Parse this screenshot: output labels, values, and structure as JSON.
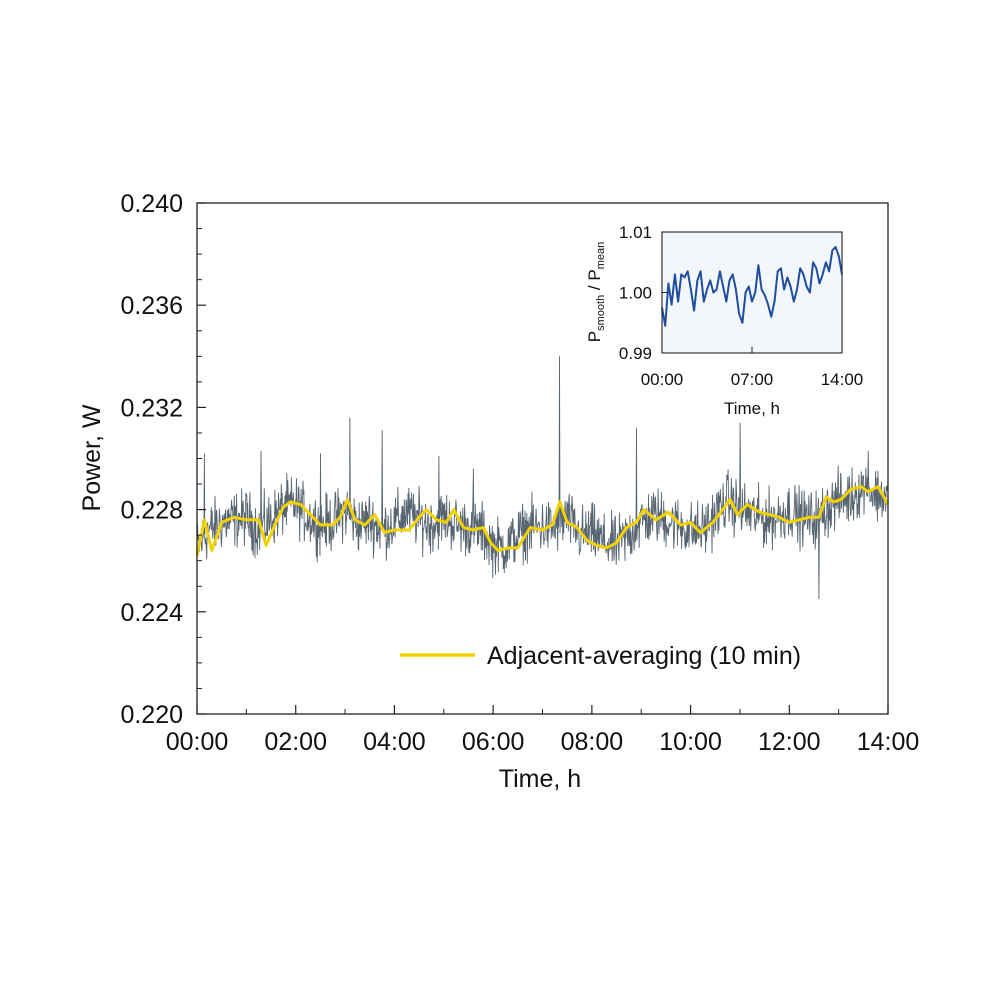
{
  "chart_data": [
    {
      "type": "line",
      "title": "",
      "xlabel": "Time, h",
      "ylabel": "Power, W",
      "xlim": [
        0,
        14
      ],
      "ylim": [
        0.22,
        0.24
      ],
      "x_ticks": [
        0,
        2,
        4,
        6,
        8,
        10,
        12,
        14
      ],
      "x_tick_labels": [
        "00:00",
        "02:00",
        "04:00",
        "06:00",
        "08:00",
        "10:00",
        "12:00",
        "14:00"
      ],
      "y_ticks": [
        0.22,
        0.224,
        0.228,
        0.232,
        0.236,
        0.24
      ],
      "y_tick_labels": [
        "0.220",
        "0.224",
        "0.228",
        "0.232",
        "0.236",
        "0.240"
      ],
      "grid": false,
      "legend": {
        "placement": "bottom-right",
        "entries": [
          "Adjacent-averaging (10 min)"
        ]
      },
      "colors": {
        "raw": "#3a4a58",
        "smooth": "#f2d100"
      },
      "series": [
        {
          "role": "raw",
          "x": [
            0,
            0.25,
            0.5,
            0.75,
            1,
            1.25,
            1.5,
            1.75,
            2,
            2.25,
            2.5,
            2.75,
            3,
            3.25,
            3.5,
            3.75,
            4,
            4.25,
            4.5,
            4.75,
            5,
            5.25,
            5.5,
            5.75,
            6,
            6.25,
            6.5,
            6.75,
            7,
            7.25,
            7.5,
            7.75,
            8,
            8.25,
            8.5,
            8.75,
            9,
            9.25,
            9.5,
            9.75,
            10,
            10.25,
            10.5,
            10.75,
            11,
            11.25,
            11.5,
            11.75,
            12,
            12.25,
            12.5,
            12.75,
            13,
            13.25,
            13.5,
            13.75,
            14
          ],
          "mean": [
            0.2265,
            0.2272,
            0.2275,
            0.2276,
            0.2277,
            0.2272,
            0.2276,
            0.2281,
            0.2282,
            0.2277,
            0.2274,
            0.2275,
            0.228,
            0.2274,
            0.2276,
            0.2272,
            0.2275,
            0.2279,
            0.2276,
            0.2274,
            0.2277,
            0.2274,
            0.2273,
            0.2272,
            0.2266,
            0.2265,
            0.227,
            0.2273,
            0.2273,
            0.2273,
            0.2277,
            0.227,
            0.2271,
            0.2267,
            0.2266,
            0.227,
            0.2275,
            0.2278,
            0.2276,
            0.2274,
            0.2272,
            0.2272,
            0.2278,
            0.2284,
            0.228,
            0.2278,
            0.2276,
            0.2277,
            0.228,
            0.2277,
            0.2276,
            0.228,
            0.2284,
            0.2285,
            0.2289,
            0.2286,
            0.2285
          ],
          "noise_amplitude": 0.0012,
          "spikes": [
            [
              0.15,
              0.2302
            ],
            [
              1.3,
              0.2303
            ],
            [
              2.5,
              0.2302
            ],
            [
              3.1,
              0.2316
            ],
            [
              3.75,
              0.2311
            ],
            [
              4.9,
              0.2301
            ],
            [
              5.6,
              0.2296
            ],
            [
              7.35,
              0.234
            ],
            [
              8.9,
              0.2312
            ],
            [
              11.0,
              0.2314
            ],
            [
              12.6,
              0.2245
            ],
            [
              13.6,
              0.2303
            ]
          ]
        },
        {
          "name": "Adjacent-averaging (10 min)",
          "role": "smooth",
          "x": [
            0,
            0.15,
            0.3,
            0.5,
            0.75,
            1,
            1.25,
            1.4,
            1.6,
            1.75,
            1.9,
            2.1,
            2.3,
            2.5,
            2.75,
            2.9,
            3.05,
            3.2,
            3.4,
            3.6,
            3.8,
            4.0,
            4.3,
            4.5,
            4.65,
            4.85,
            5.05,
            5.2,
            5.4,
            5.6,
            5.8,
            5.95,
            6.1,
            6.3,
            6.5,
            6.75,
            7.0,
            7.2,
            7.35,
            7.5,
            7.7,
            7.9,
            8.1,
            8.3,
            8.5,
            8.7,
            8.9,
            9.05,
            9.3,
            9.55,
            9.8,
            10.0,
            10.2,
            10.45,
            10.65,
            10.8,
            10.95,
            11.15,
            11.4,
            11.6,
            11.8,
            12.0,
            12.2,
            12.4,
            12.6,
            12.75,
            12.9,
            13.05,
            13.25,
            13.45,
            13.6,
            13.8,
            14.0
          ],
          "y": [
            0.2262,
            0.2276,
            0.2264,
            0.2275,
            0.2277,
            0.2276,
            0.2276,
            0.2266,
            0.2275,
            0.2281,
            0.2283,
            0.2282,
            0.2278,
            0.2274,
            0.2274,
            0.2277,
            0.2284,
            0.2276,
            0.2274,
            0.2278,
            0.2271,
            0.2272,
            0.2272,
            0.2277,
            0.228,
            0.2276,
            0.2275,
            0.228,
            0.2273,
            0.2272,
            0.2273,
            0.2267,
            0.2264,
            0.2265,
            0.2265,
            0.2273,
            0.2272,
            0.2274,
            0.2283,
            0.2275,
            0.2273,
            0.2268,
            0.2266,
            0.2265,
            0.2267,
            0.2273,
            0.2275,
            0.228,
            0.2276,
            0.2279,
            0.2274,
            0.2275,
            0.2271,
            0.2275,
            0.228,
            0.2284,
            0.2278,
            0.2282,
            0.2279,
            0.2278,
            0.2277,
            0.2275,
            0.2276,
            0.2277,
            0.2277,
            0.2285,
            0.2283,
            0.2284,
            0.2288,
            0.2289,
            0.2287,
            0.2289,
            0.2282
          ]
        }
      ]
    },
    {
      "type": "line",
      "title": "",
      "xlabel": "Time, h",
      "ylabel_main": "P",
      "ylabel_sub1": "smooth",
      "ylabel_sep": " / P",
      "ylabel_sub2": "mean",
      "xlim": [
        0,
        14
      ],
      "ylim": [
        0.99,
        1.01
      ],
      "x_ticks": [
        0,
        7,
        14
      ],
      "x_tick_labels": [
        "00:00",
        "07:00",
        "14:00"
      ],
      "y_ticks": [
        0.99,
        1.0,
        1.01
      ],
      "y_tick_labels": [
        "0.99",
        "1.00",
        "1.01"
      ],
      "grid": false,
      "colors": {
        "line": "#1f4e9e"
      },
      "series": [
        {
          "x": [
            0,
            0.25,
            0.5,
            0.75,
            1,
            1.25,
            1.5,
            1.75,
            2,
            2.25,
            2.5,
            2.75,
            3,
            3.25,
            3.5,
            3.75,
            4,
            4.25,
            4.5,
            4.75,
            5,
            5.25,
            5.5,
            5.75,
            6,
            6.25,
            6.5,
            6.75,
            7,
            7.25,
            7.5,
            7.75,
            8,
            8.25,
            8.5,
            8.75,
            9,
            9.25,
            9.5,
            9.75,
            10,
            10.25,
            10.5,
            10.75,
            11,
            11.25,
            11.5,
            11.75,
            12,
            12.25,
            12.5,
            12.75,
            13,
            13.25,
            13.5,
            13.75,
            14
          ],
          "y": [
            0.9975,
            0.9945,
            1.0015,
            0.998,
            1.003,
            0.9985,
            1.003,
            1.0025,
            1.0035,
            1.0005,
            0.997,
            1.002,
            1.0035,
            0.9985,
            1.0005,
            1.002,
            1.0,
            1.0005,
            1.0035,
            1.001,
            0.9985,
            1.002,
            1.003,
            1.0005,
            0.9965,
            0.995,
            1.0,
            1.001,
            0.9985,
            1.0,
            1.0045,
            1.0005,
            0.9995,
            0.998,
            0.996,
            0.9985,
            1.0035,
            1.004,
            1.0005,
            1.0025,
            1.001,
            0.9985,
            1.0005,
            1.004,
            1.003,
            1.001,
            1.0,
            1.005,
            1.004,
            1.0015,
            1.003,
            1.005,
            1.0035,
            1.007,
            1.0075,
            1.006,
            1.003
          ]
        }
      ]
    }
  ]
}
